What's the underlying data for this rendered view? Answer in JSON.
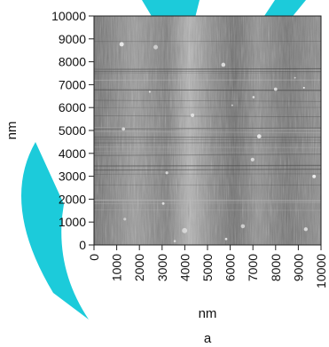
{
  "chart_data": {
    "type": "heatmap",
    "description_kind": "afm-height-map",
    "xlabel": "nm",
    "ylabel": "nm",
    "xlim": [
      0,
      10000
    ],
    "ylim": [
      0,
      10000
    ],
    "x_ticks": [
      "0",
      "1000",
      "2000",
      "3000",
      "4000",
      "5000",
      "6000",
      "7000",
      "8000",
      "9000",
      "10000"
    ],
    "y_ticks": [
      "0",
      "1000",
      "2000",
      "3000",
      "4000",
      "5000",
      "6000",
      "7000",
      "8000",
      "9000",
      "10000"
    ],
    "colormap": "grayscale",
    "grid": false,
    "panel_label": "a"
  },
  "decor": {
    "accent_color": "#10c8d8"
  }
}
